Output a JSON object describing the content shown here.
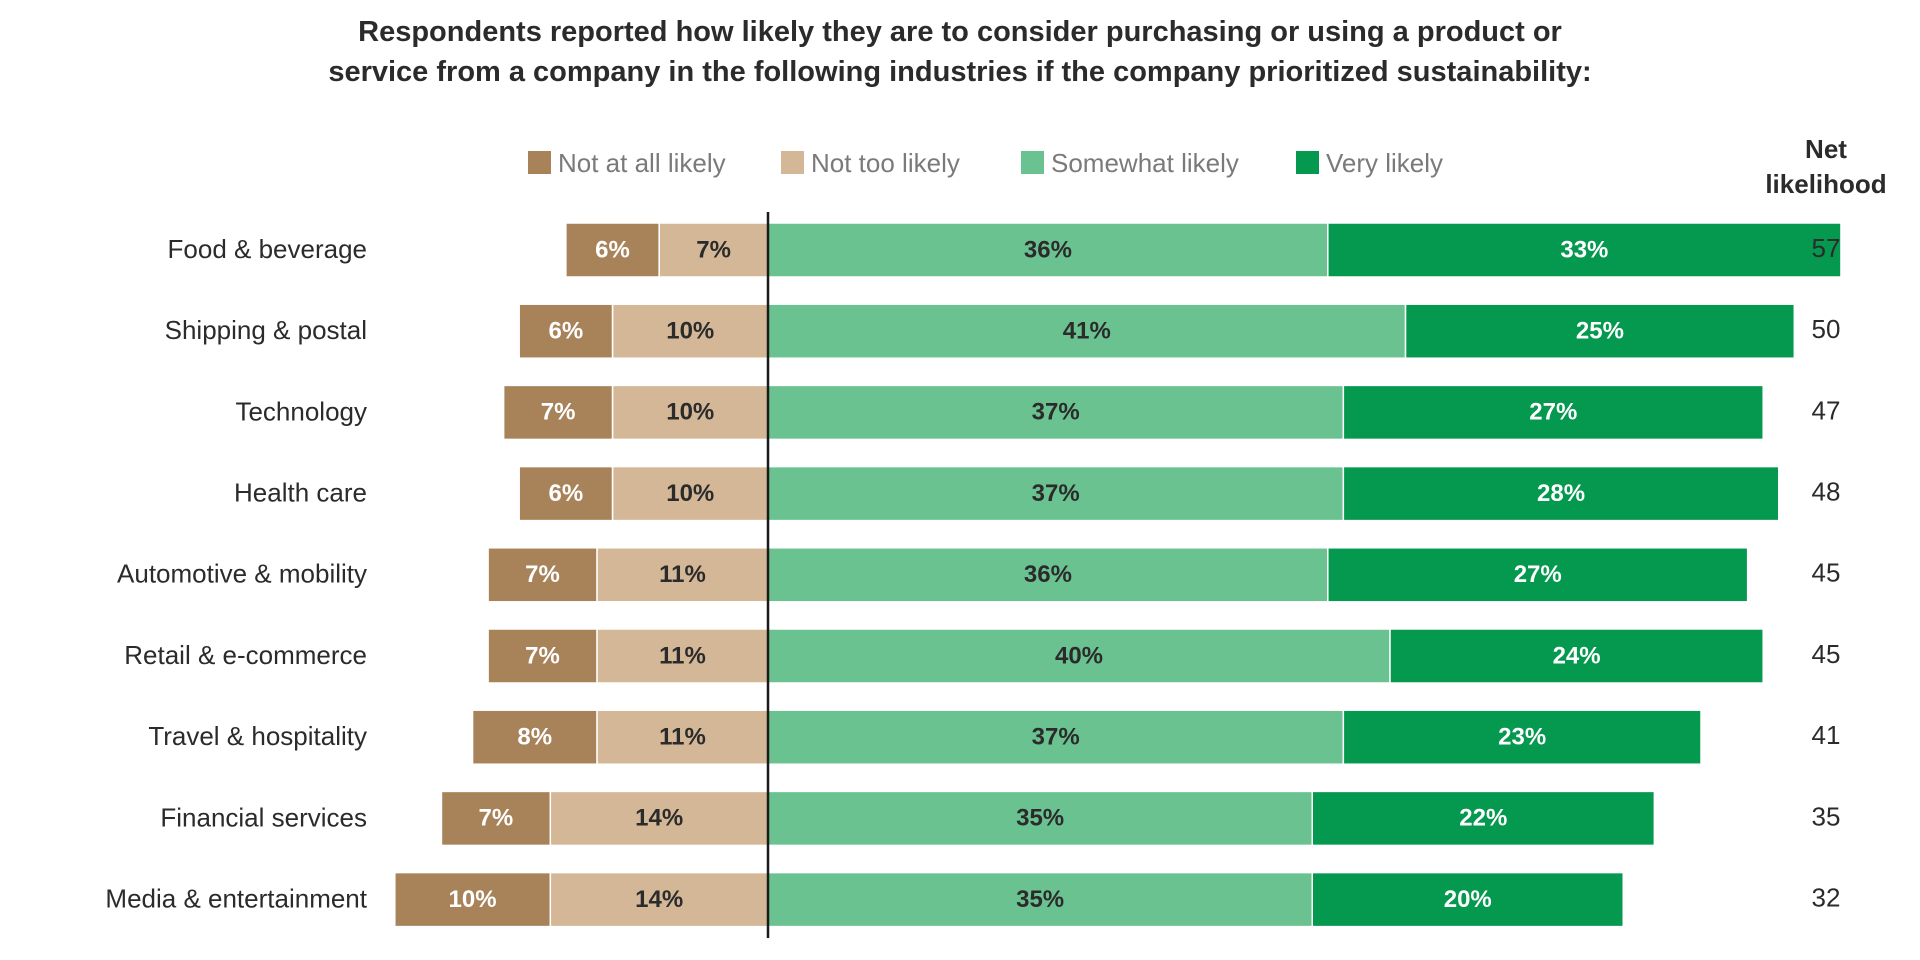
{
  "chart_data": {
    "type": "bar",
    "orientation": "horizontal",
    "stacking": "diverging",
    "title_lines": [
      "Respondents reported how likely they are to consider purchasing or using a product or",
      "service from a company in the following industries if the company prioritized sustainability:"
    ],
    "net_header_lines": [
      "Net",
      "likelihood"
    ],
    "categories": [
      "Food & beverage",
      "Shipping & postal",
      "Technology",
      "Health care",
      "Automotive & mobility",
      "Retail & e-commerce",
      "Travel & hospitality",
      "Financial services",
      "Media & entertainment"
    ],
    "series": [
      {
        "name": "Not at all likely",
        "side": "negative",
        "color": "#a8835a",
        "label_color": "#ffffff",
        "values": [
          6,
          6,
          7,
          6,
          7,
          7,
          8,
          7,
          10
        ],
        "labels": [
          "6%",
          "6%",
          "7%",
          "6%",
          "7%",
          "7%",
          "8%",
          "7%",
          "10%"
        ]
      },
      {
        "name": "Not too likely",
        "side": "negative",
        "color": "#d3b796",
        "label_color": "#2b2b2b",
        "values": [
          7,
          10,
          10,
          10,
          11,
          11,
          11,
          14,
          14
        ],
        "labels": [
          "7%",
          "10%",
          "10%",
          "10%",
          "11%",
          "11%",
          "11%",
          "14%",
          "14%"
        ]
      },
      {
        "name": "Somewhat likely",
        "side": "positive",
        "color": "#6bc291",
        "label_color": "#2b2b2b",
        "values": [
          36,
          41,
          37,
          37,
          36,
          40,
          37,
          35,
          35
        ],
        "labels": [
          "36%",
          "41%",
          "37%",
          "37%",
          "36%",
          "40%",
          "37%",
          "35%",
          "35%"
        ]
      },
      {
        "name": "Very likely",
        "side": "positive",
        "color": "#05984f",
        "label_color": "#ffffff",
        "values": [
          33,
          25,
          27,
          28,
          27,
          24,
          23,
          22,
          20
        ],
        "labels": [
          "33%",
          "25%",
          "27%",
          "28%",
          "27%",
          "24%",
          "23%",
          "22%",
          "20%"
        ]
      }
    ],
    "net_likelihood": [
      "57",
      "50",
      "47",
      "48",
      "45",
      "45",
      "41",
      "35",
      "32"
    ],
    "legend_position": "top",
    "grid": false
  }
}
